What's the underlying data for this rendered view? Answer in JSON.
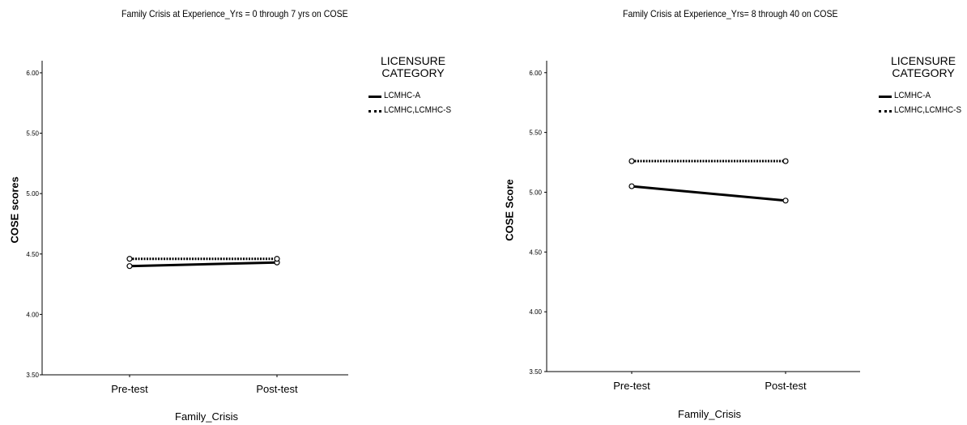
{
  "chart_data": [
    {
      "type": "line",
      "title": "Family Crisis at Experience_Yrs = 0 through 7 yrs on COSE",
      "xlabel": "Family_Crisis",
      "ylabel": "COSE scores",
      "categories": [
        "Pre-test",
        "Post-test"
      ],
      "ylim": [
        3.5,
        6.1
      ],
      "yticks": [
        "3.50",
        "4.00",
        "4.50",
        "5.00",
        "5.50",
        "6.00"
      ],
      "legend_title": [
        "LICENSURE",
        "CATEGORY"
      ],
      "legend_position": "top-right",
      "grid": false,
      "series": [
        {
          "name": "LCMHC-A",
          "values": [
            4.4,
            4.43
          ],
          "style": "solid"
        },
        {
          "name": "LCMHC,LCMHC-S",
          "values": [
            4.46,
            4.46
          ],
          "style": "dotted"
        }
      ]
    },
    {
      "type": "line",
      "title": "Family Crisis at Experience_Yrs= 8 through 40 on COSE",
      "xlabel": "Family_Crisis",
      "ylabel": "COSE Score",
      "categories": [
        "Pre-test",
        "Post-test"
      ],
      "ylim": [
        3.5,
        6.1
      ],
      "yticks": [
        "3.50",
        "4.00",
        "4.50",
        "5.00",
        "5.50",
        "6.00"
      ],
      "legend_title": [
        "LICENSURE",
        "CATEGORY"
      ],
      "legend_position": "top-right",
      "grid": false,
      "series": [
        {
          "name": "LCMHC-A",
          "values": [
            5.05,
            4.93
          ],
          "style": "solid"
        },
        {
          "name": "LCMHC,LCMHC-S",
          "values": [
            5.26,
            5.26
          ],
          "style": "dotted"
        }
      ]
    }
  ],
  "colors": {
    "line": "#000000",
    "axis": "#000000",
    "background": "#ffffff"
  }
}
